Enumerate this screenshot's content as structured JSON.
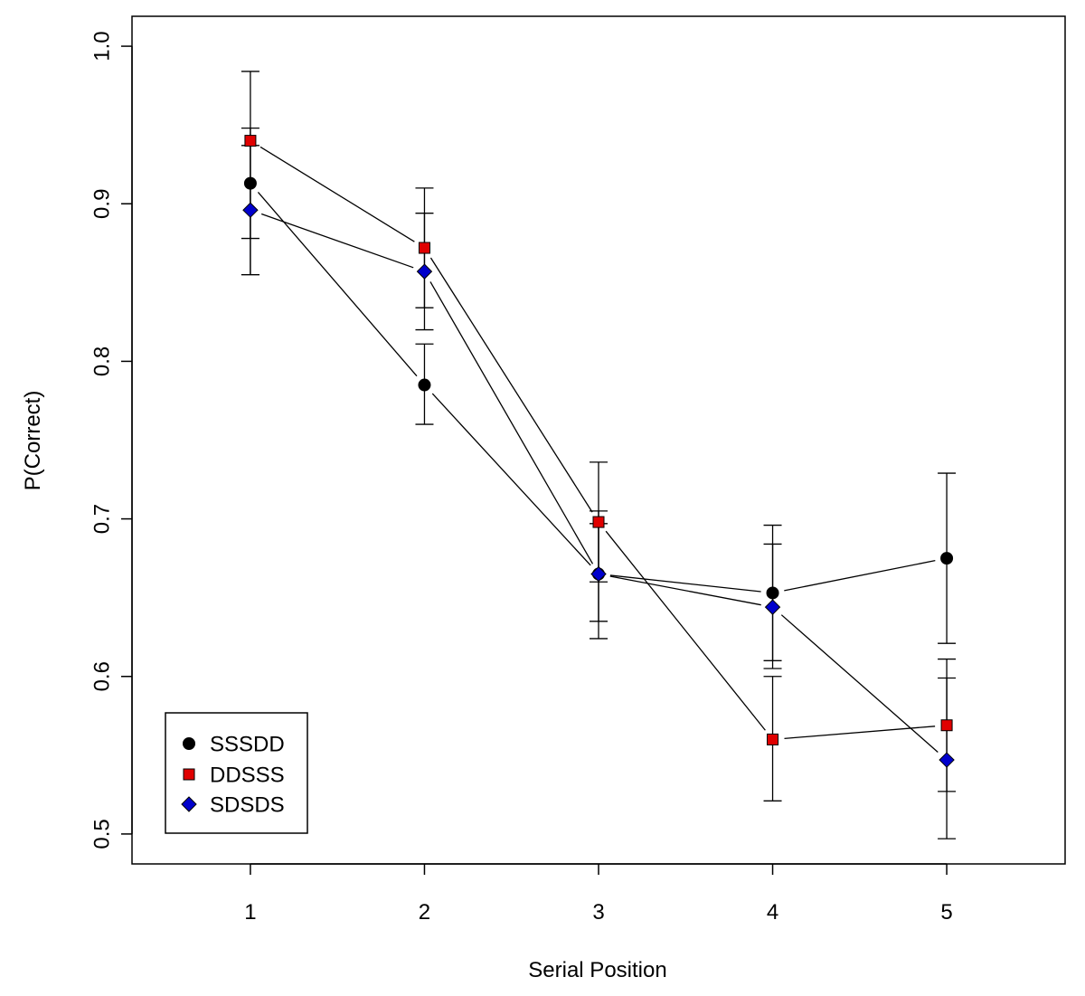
{
  "chart_data": {
    "type": "line",
    "title": "",
    "xlabel": "Serial Position",
    "ylabel": "P(Correct)",
    "x": [
      1,
      2,
      3,
      4,
      5
    ],
    "xlim": [
      0.32,
      5.68
    ],
    "ylim": [
      0.481,
      1.019
    ],
    "xticks": [
      1,
      2,
      3,
      4,
      5
    ],
    "yticks": [
      0.5,
      0.6,
      0.7,
      0.8,
      0.9,
      1.0
    ],
    "ytick_labels": [
      "0.5",
      "0.6",
      "0.7",
      "0.8",
      "0.9",
      "1.0"
    ],
    "grid": false,
    "legend_position": "bottom-left",
    "series": [
      {
        "name": "SSSDD",
        "marker": "circle",
        "color": "#000000",
        "values": [
          0.913,
          0.785,
          0.665,
          0.653,
          0.675
        ],
        "err_low": [
          0.855,
          0.76,
          0.624,
          0.61,
          0.621
        ],
        "err_high": [
          0.948,
          0.811,
          0.705,
          0.696,
          0.729
        ]
      },
      {
        "name": "DDSSS",
        "marker": "square",
        "color": "#e00000",
        "values": [
          0.94,
          0.872,
          0.698,
          0.56,
          0.569
        ],
        "err_low": [
          0.878,
          0.834,
          0.66,
          0.521,
          0.527
        ],
        "err_high": [
          0.984,
          0.91,
          0.736,
          0.6,
          0.611
        ]
      },
      {
        "name": "SDSDS",
        "marker": "diamond",
        "color": "#0000cc",
        "values": [
          0.896,
          0.857,
          0.665,
          0.644,
          0.547
        ],
        "err_low": [
          0.855,
          0.82,
          0.635,
          0.605,
          0.497
        ],
        "err_high": [
          0.937,
          0.894,
          0.697,
          0.684,
          0.599
        ]
      }
    ]
  }
}
